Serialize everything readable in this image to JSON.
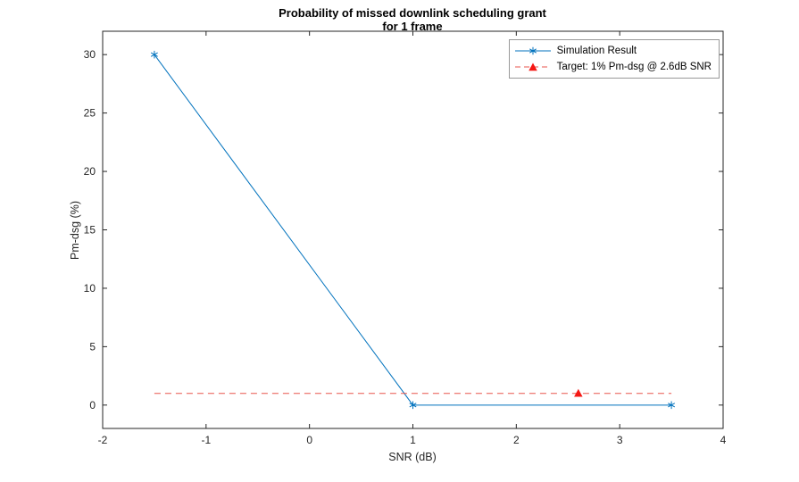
{
  "figure": {
    "background": "#ffffff",
    "axis_color": "#262626",
    "tick_label_color": "#262626"
  },
  "chart_data": {
    "type": "line",
    "title": "Probability of missed downlink scheduling grant",
    "subtitle": "for 1 frame",
    "xlabel": "SNR (dB)",
    "ylabel": "Pm-dsg (%)",
    "xlim": [
      -2,
      4
    ],
    "ylim": [
      -2,
      32
    ],
    "x_ticks": [
      -2,
      -1,
      0,
      1,
      2,
      3,
      4
    ],
    "y_ticks": [
      0,
      5,
      10,
      15,
      20,
      25,
      30
    ],
    "grid": false,
    "legend_position": "top-right",
    "series": [
      {
        "name": "Simulation Result",
        "color": "#0072BD",
        "line_style": "solid",
        "marker": "asterisk",
        "x": [
          -1.5,
          1,
          3.5
        ],
        "y": [
          30,
          0,
          0
        ]
      },
      {
        "name": "Target: 1% Pm-dsg @ 2.6dB SNR",
        "color": "#E8564D",
        "marker_color": "#F51814",
        "line_style": "dashed",
        "marker": "triangle",
        "x": [
          -1.5,
          3.5
        ],
        "y": [
          1,
          1
        ],
        "marker_x": [
          2.6
        ],
        "marker_y": [
          1
        ]
      }
    ]
  }
}
